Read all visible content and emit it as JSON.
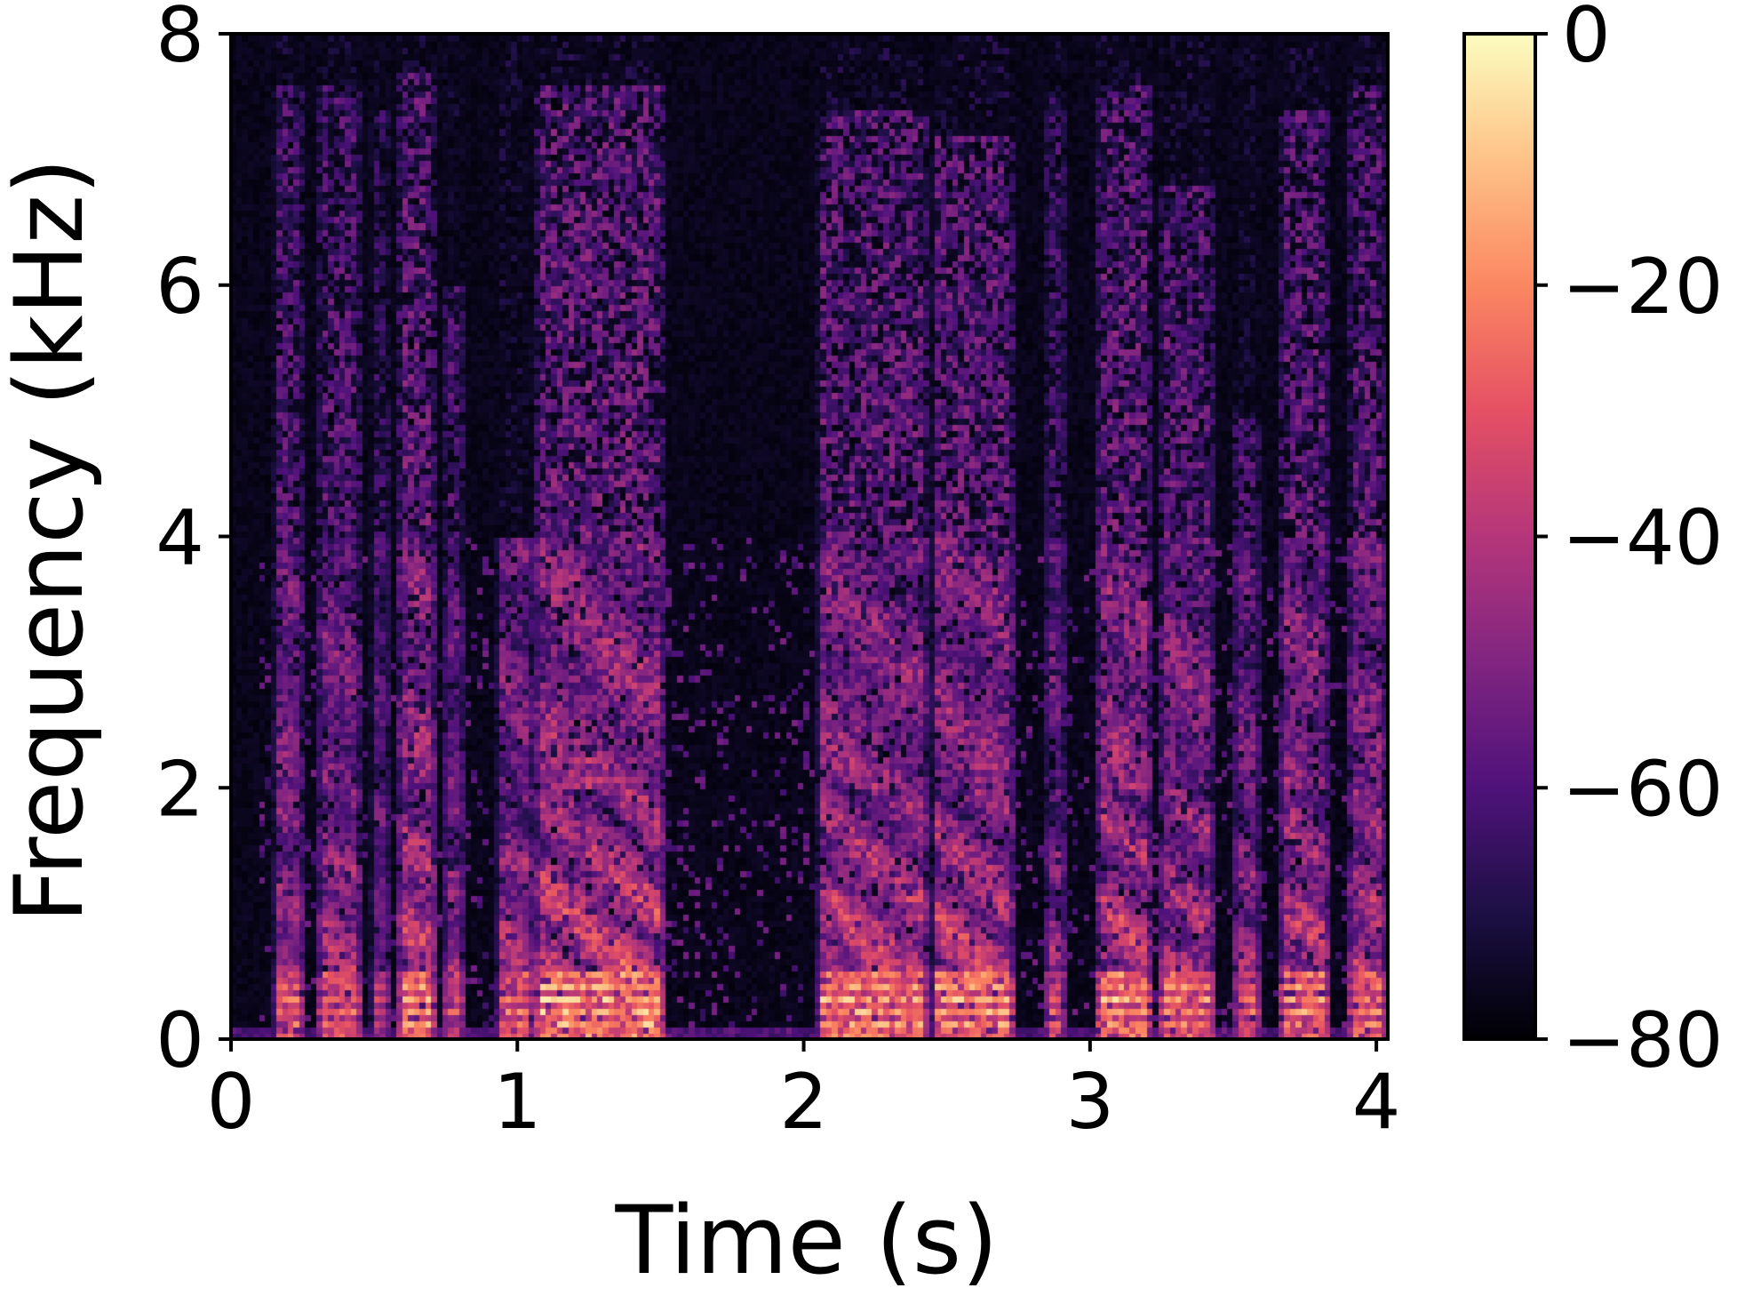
{
  "chart_data": {
    "type": "heatmap",
    "title": "",
    "xlabel": "Time (s)",
    "ylabel": "Frequency (kHz)",
    "xlim": [
      0,
      4.04
    ],
    "ylim": [
      0,
      8
    ],
    "x_ticks": [
      0,
      1,
      2,
      3,
      4
    ],
    "x_tick_labels": [
      "0",
      "1",
      "2",
      "3",
      "4"
    ],
    "y_ticks": [
      0,
      2,
      4,
      6,
      8
    ],
    "y_tick_labels": [
      "0",
      "2",
      "4",
      "6",
      "8"
    ],
    "colormap": "magma",
    "colormap_stops": [
      "#000004",
      "#1c1044",
      "#4f127b",
      "#812581",
      "#b5367a",
      "#e55064",
      "#fb8761",
      "#fec287",
      "#fcfdbf"
    ],
    "colorbar": {
      "range": [
        -80,
        0
      ],
      "ticks": [
        0,
        -20,
        -40,
        -60,
        -80
      ],
      "tick_labels": [
        "0",
        "−20",
        "−40",
        "−60",
        "−80"
      ]
    },
    "grid": false,
    "time_resolution_s": 0.02,
    "frequency_resolution_khz": 0.05,
    "segments": [
      {
        "t_start": 0.15,
        "t_end": 0.26,
        "strength": 0.78,
        "top_khz": 7.6
      },
      {
        "t_start": 0.3,
        "t_end": 0.46,
        "strength": 0.8,
        "top_khz": 7.6
      },
      {
        "t_start": 0.49,
        "t_end": 0.56,
        "strength": 0.62,
        "top_khz": 7.4
      },
      {
        "t_start": 0.58,
        "t_end": 0.72,
        "strength": 0.92,
        "top_khz": 7.7
      },
      {
        "t_start": 0.74,
        "t_end": 0.82,
        "strength": 0.72,
        "top_khz": 6.0
      },
      {
        "t_start": 0.93,
        "t_end": 1.06,
        "strength": 0.8,
        "top_khz": 4.0
      },
      {
        "t_start": 1.06,
        "t_end": 1.52,
        "strength": 0.95,
        "top_khz": 7.6
      },
      {
        "t_start": 2.05,
        "t_end": 2.44,
        "strength": 0.9,
        "top_khz": 7.4
      },
      {
        "t_start": 2.45,
        "t_end": 2.74,
        "strength": 0.9,
        "top_khz": 7.2
      },
      {
        "t_start": 2.84,
        "t_end": 2.92,
        "strength": 0.72,
        "top_khz": 7.5
      },
      {
        "t_start": 3.02,
        "t_end": 3.22,
        "strength": 0.92,
        "top_khz": 7.6
      },
      {
        "t_start": 3.24,
        "t_end": 3.44,
        "strength": 0.85,
        "top_khz": 6.8
      },
      {
        "t_start": 3.5,
        "t_end": 3.6,
        "strength": 0.75,
        "top_khz": 5.0
      },
      {
        "t_start": 3.66,
        "t_end": 3.84,
        "strength": 0.88,
        "top_khz": 7.4
      },
      {
        "t_start": 3.9,
        "t_end": 4.04,
        "strength": 0.85,
        "top_khz": 7.6
      }
    ]
  }
}
